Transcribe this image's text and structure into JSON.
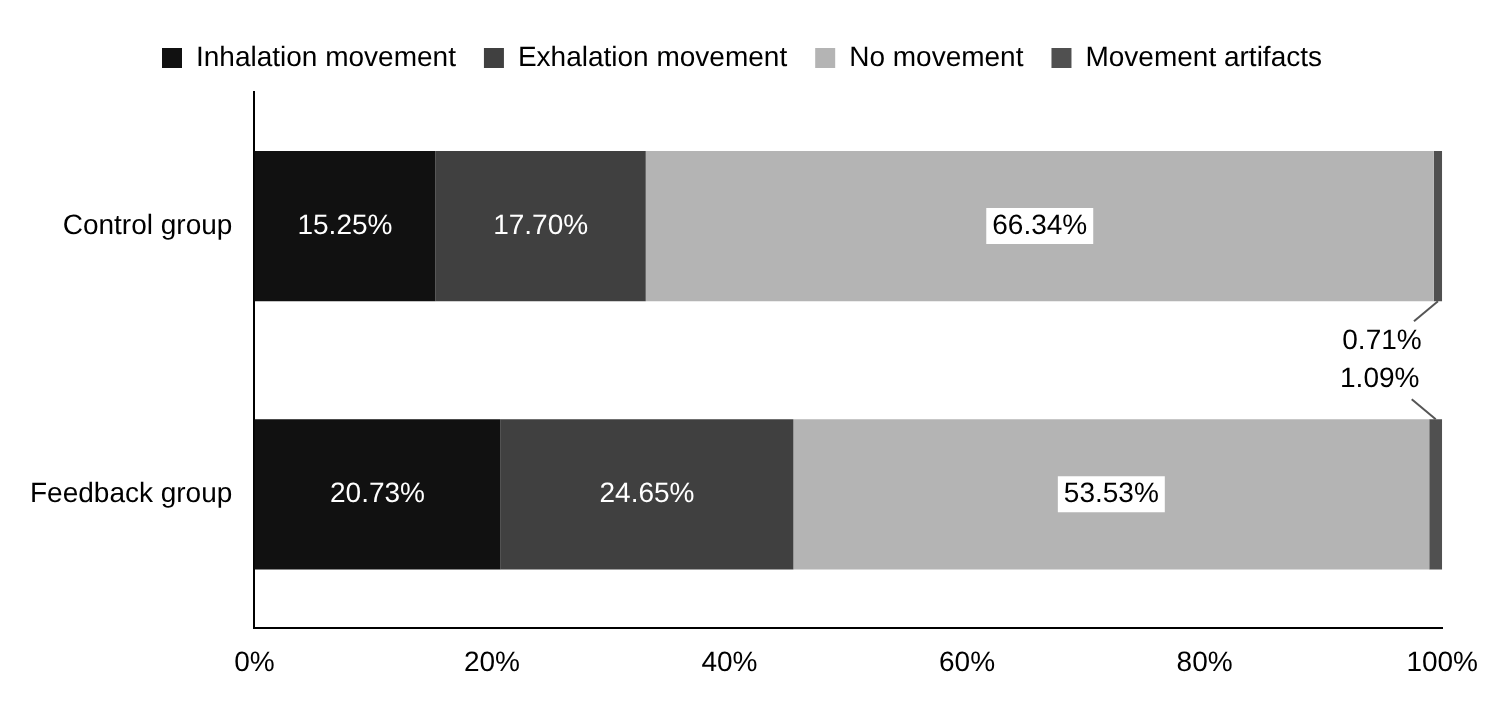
{
  "chart_data": {
    "type": "bar",
    "orientation": "horizontal",
    "stacked": true,
    "categories": [
      "Control group",
      "Feedback group"
    ],
    "series": [
      {
        "name": "Inhalation movement",
        "color": "#111111",
        "values": [
          15.25,
          20.73
        ],
        "value_labels": [
          "15.25%",
          "20.73%"
        ]
      },
      {
        "name": "Exhalation movement",
        "color": "#404040",
        "values": [
          17.7,
          24.65
        ],
        "value_labels": [
          "17.70%",
          "24.65%"
        ]
      },
      {
        "name": "No movement",
        "color": "#b4b4b4",
        "values": [
          66.34,
          53.53
        ],
        "value_labels": [
          "66.34%",
          "53.53%"
        ]
      },
      {
        "name": "Movement artifacts",
        "color": "#505050",
        "values": [
          0.71,
          1.09
        ],
        "value_labels": [
          "0.71%",
          "1.09%"
        ]
      }
    ],
    "xlim": [
      0,
      100
    ],
    "xticks": [
      {
        "value": 0,
        "label": "0%"
      },
      {
        "value": 20,
        "label": "20%"
      },
      {
        "value": 40,
        "label": "40%"
      },
      {
        "value": 60,
        "label": "60%"
      },
      {
        "value": 80,
        "label": "80%"
      },
      {
        "value": 100,
        "label": "100%"
      }
    ],
    "grid": false,
    "legend": "top"
  }
}
